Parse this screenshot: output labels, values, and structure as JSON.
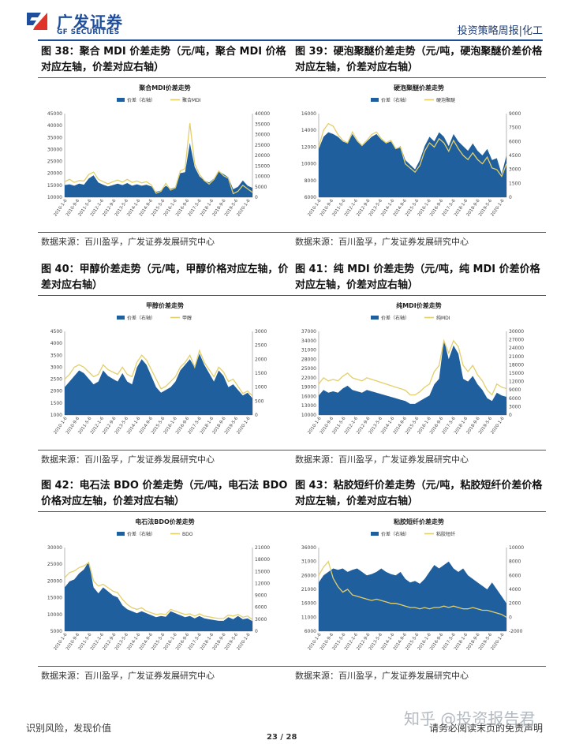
{
  "header": {
    "logo_cn": "广发证券",
    "logo_en": "GF SECURITIES",
    "report_type": "投资策略周报|化工"
  },
  "footer": {
    "left": "识别风险，发现价值",
    "page": "23 / 28",
    "right": "请务必阅读末页的免责声明",
    "watermark": "知乎 @投资报告君"
  },
  "panels": [
    {
      "title": "图 38：聚合 MDI 价差走势（元/吨，聚合 MDI 价格对应左轴，价差对应右轴）",
      "source": "数据来源：百川盈孚，广发证券发展研究中心",
      "chart_data": {
        "type": "area",
        "title": "聚合MDI价差走势",
        "legend_position": "top",
        "series": [
          {
            "name": "价差（右轴）",
            "axis": "right",
            "kind": "area",
            "values": [
              5800,
              6200,
              5500,
              6500,
              6000,
              9000,
              10500,
              7000,
              6000,
              5200,
              5800,
              6500,
              5800,
              6800,
              5500,
              6200,
              5500,
              6000,
              5200,
              2600,
              3200,
              5500,
              4000,
              4800,
              11500,
              12000,
              26000,
              14500,
              10000,
              8000,
              7000,
              9000,
              12500,
              11000,
              9500,
              3800,
              5000,
              8000,
              5500,
              4500
            ]
          },
          {
            "name": "聚合MDI",
            "axis": "left",
            "kind": "line",
            "values": [
              16500,
              17500,
              16200,
              17000,
              16800,
              19500,
              20500,
              17500,
              16500,
              15600,
              16500,
              17200,
              16300,
              17500,
              16200,
              16800,
              16000,
              16500,
              15200,
              11700,
              12500,
              15800,
              13000,
              14000,
              21000,
              22000,
              41000,
              24000,
              19500,
              17000,
              15500,
              17500,
              21000,
              19000,
              18000,
              11500,
              12500,
              15000,
              13500,
              12000
            ]
          }
        ],
        "x_tick_labels": [
          "2010-1-6",
          "2010-9-6",
          "2011-5-6",
          "2012-1-6",
          "2012-9-6",
          "2013-5-6",
          "2014-1-6",
          "2014-9-6",
          "2015-5-6",
          "2016-1-6",
          "2016-9-6",
          "2017-5-6",
          "2018-1-6",
          "2018-9-6",
          "2019-5-6",
          "2020-1-6"
        ],
        "ylim_left": [
          10000,
          45000
        ],
        "yticks_left": [
          10000,
          15000,
          20000,
          25000,
          30000,
          35000,
          40000,
          45000
        ],
        "ylim_right": [
          0,
          40000
        ],
        "yticks_right": [
          0,
          5000,
          10000,
          15000,
          20000,
          25000,
          30000,
          35000,
          40000
        ]
      }
    },
    {
      "title": "图 39：硬泡聚醚价差走势（元/吨，硬泡聚醚价差价格对应左轴，价差对应右轴）",
      "source": "数据来源：百川盈孚，广发证券发展研究中心",
      "chart_data": {
        "type": "area",
        "title": "硬泡聚醚价差走势",
        "legend_position": "top",
        "series": [
          {
            "name": "价差（右轴）",
            "axis": "right",
            "kind": "area",
            "values": [
              5200,
              6500,
              7000,
              6800,
              6500,
              6000,
              5800,
              6800,
              6000,
              5500,
              6000,
              6500,
              6800,
              6200,
              5800,
              6000,
              5200,
              5500,
              4000,
              3500,
              3000,
              4000,
              5500,
              6500,
              6000,
              7000,
              6500,
              5500,
              6800,
              6000,
              5500,
              5000,
              5800,
              5000,
              4500,
              5200,
              4000,
              4200,
              2500,
              4500
            ]
          },
          {
            "name": "硬泡聚醚",
            "axis": "left",
            "kind": "line",
            "values": [
              12000,
              14000,
              14800,
              14500,
              13500,
              12800,
              12500,
              13800,
              12800,
              12200,
              12800,
              13500,
              13800,
              13000,
              12500,
              12800,
              11800,
              12000,
              10000,
              9500,
              9000,
              9800,
              11500,
              12500,
              12000,
              13000,
              12500,
              11500,
              12800,
              11800,
              11000,
              10500,
              11300,
              10500,
              10000,
              10800,
              9500,
              9300,
              8500,
              10000
            ]
          }
        ],
        "x_tick_labels": [
          "2010-1-6",
          "2010-9-6",
          "2011-5-6",
          "2012-1-6",
          "2012-9-6",
          "2013-5-6",
          "2014-1-6",
          "2014-9-6",
          "2015-5-6",
          "2016-1-6",
          "2016-9-6",
          "2017-5-6",
          "2018-1-6",
          "2018-9-6",
          "2019-5-6",
          "2020-1-6"
        ],
        "ylim_left": [
          6000,
          16000
        ],
        "yticks_left": [
          6000,
          8000,
          10000,
          12000,
          14000,
          16000
        ],
        "ylim_right": [
          0,
          9000
        ],
        "yticks_right": [
          0,
          1500,
          3000,
          4500,
          6000,
          7500,
          9000
        ]
      }
    },
    {
      "title": "图 40：甲醇价差走势（元/吨，甲醇价格对应左轴，价差对应右轴）",
      "source": "数据来源：百川盈孚，广发证券发展研究中心",
      "chart_data": {
        "type": "area",
        "title": "甲醇价差走势",
        "legend_position": "top",
        "series": [
          {
            "name": "价差（右轴）",
            "axis": "right",
            "kind": "area",
            "values": [
              1000,
              1200,
              1400,
              1600,
              1500,
              1300,
              1100,
              1200,
              1600,
              1400,
              1300,
              1200,
              1500,
              1200,
              1100,
              1700,
              2000,
              1800,
              1400,
              1000,
              800,
              900,
              1000,
              1200,
              1600,
              1800,
              2000,
              1700,
              2200,
              1800,
              1500,
              1200,
              1600,
              1400,
              1000,
              1100,
              900,
              700,
              800,
              600
            ]
          },
          {
            "name": "甲醇",
            "axis": "left",
            "kind": "line",
            "values": [
              2500,
              2700,
              3000,
              3100,
              3000,
              2800,
              2600,
              2700,
              3100,
              2900,
              2800,
              2700,
              3000,
              2700,
              2600,
              3200,
              3500,
              3300,
              2900,
              2500,
              2100,
              2200,
              2400,
              2600,
              3000,
              3200,
              3500,
              3000,
              3700,
              3200,
              2900,
              2600,
              3000,
              2800,
              2400,
              2500,
              2200,
              1900,
              2000,
              1800
            ]
          }
        ],
        "x_tick_labels": [
          "2010-1-6",
          "2010-9-6",
          "2011-5-6",
          "2012-1-6",
          "2012-9-6",
          "2013-5-6",
          "2014-1-6",
          "2014-9-6",
          "2015-5-6",
          "2016-1-6",
          "2016-9-6",
          "2017-5-6",
          "2018-1-6",
          "2018-9-6",
          "2019-5-6",
          "2020-1-6"
        ],
        "ylim_left": [
          1000,
          4500
        ],
        "yticks_left": [
          1000,
          1500,
          2000,
          2500,
          3000,
          3500,
          4000,
          4500
        ],
        "ylim_right": [
          0,
          3000
        ],
        "yticks_right": [
          0,
          500,
          1000,
          1500,
          2000,
          2500,
          3000
        ]
      }
    },
    {
      "title": "图 41：纯 MDI 价差走势（元/吨，纯 MDI 价差价格对应左轴，价差对应右轴）",
      "source": "数据来源：百川盈孚，广发证券发展研究中心",
      "chart_data": {
        "type": "area",
        "title": "纯MDI价差走势",
        "legend_position": "top",
        "series": [
          {
            "name": "价差（右轴）",
            "axis": "right",
            "kind": "area",
            "values": [
              7000,
              9000,
              8000,
              8500,
              8000,
              9500,
              10500,
              9000,
              8500,
              8000,
              9000,
              8500,
              8000,
              7500,
              7000,
              6500,
              6000,
              5500,
              5000,
              4000,
              4000,
              5000,
              6000,
              7000,
              11000,
              13000,
              27000,
              20000,
              25000,
              22000,
              13000,
              12000,
              14000,
              11000,
              9000,
              6000,
              5000,
              8000,
              7000,
              6500
            ]
          },
          {
            "name": "纯MDI",
            "axis": "left",
            "kind": "line",
            "values": [
              20000,
              22000,
              21000,
              21500,
              21000,
              22500,
              23500,
              22000,
              21500,
              21000,
              22000,
              21500,
              21000,
              20500,
              20000,
              19500,
              19000,
              18500,
              18000,
              16500,
              16500,
              17500,
              19000,
              20000,
              24000,
              26000,
              34000,
              30000,
              34000,
              32000,
              26000,
              24000,
              26000,
              23000,
              21000,
              18000,
              16500,
              20000,
              19000,
              18500
            ]
          }
        ],
        "x_tick_labels": [
          "2010-1-6",
          "2010-9-6",
          "2011-5-6",
          "2012-1-6",
          "2012-9-6",
          "2013-5-6",
          "2014-1-6",
          "2014-9-6",
          "2015-5-6",
          "2016-1-6",
          "2016-9-6",
          "2017-5-6",
          "2018-1-6",
          "2018-9-6",
          "2019-5-6",
          "2020-1-6"
        ],
        "ylim_left": [
          10000,
          37000
        ],
        "yticks_left": [
          10000,
          13000,
          16000,
          19000,
          22000,
          25000,
          28000,
          31000,
          34000,
          37000
        ],
        "ylim_right": [
          0,
          30000
        ],
        "yticks_right": [
          0,
          3000,
          6000,
          9000,
          12000,
          15000,
          18000,
          21000,
          24000,
          27000,
          30000
        ]
      }
    },
    {
      "title": "图 42：电石法 BDO 价差走势（元/吨，电石法 BDO 价格对应左轴，价差对应右轴）",
      "source": "数据来源：百川盈孚，广发证券发展研究中心",
      "chart_data": {
        "type": "area",
        "title": "电石法BDO价差走势",
        "legend_position": "top",
        "series": [
          {
            "name": "价差（右轴）",
            "axis": "right",
            "kind": "area",
            "values": [
              11000,
              12500,
              13000,
              14500,
              15500,
              17500,
              11000,
              9500,
              11000,
              10000,
              9000,
              8500,
              6500,
              5500,
              5000,
              4500,
              5000,
              4500,
              4000,
              3500,
              3800,
              3600,
              5000,
              4500,
              4000,
              3500,
              3800,
              3200,
              3800,
              3200,
              3000,
              2800,
              2600,
              2600,
              3500,
              3000,
              3800,
              3000,
              3200,
              2500
            ]
          },
          {
            "name": "BDO",
            "axis": "left",
            "kind": "line",
            "values": [
              21000,
              22500,
              23000,
              24000,
              24500,
              25500,
              20000,
              18500,
              19000,
              18000,
              17000,
              16500,
              14500,
              13000,
              12000,
              11500,
              12000,
              11000,
              10500,
              10000,
              10200,
              10000,
              11500,
              11000,
              10500,
              10000,
              10200,
              9500,
              10200,
              9500,
              9300,
              9000,
              8800,
              8800,
              9800,
              9500,
              10000,
              9200,
              9500,
              8500
            ]
          }
        ],
        "x_tick_labels": [
          "2010-1-6",
          "2010-9-6",
          "2011-5-6",
          "2012-1-6",
          "2012-9-6",
          "2013-5-6",
          "2014-1-6",
          "2014-9-6",
          "2015-5-6",
          "2016-1-6",
          "2016-9-6",
          "2017-5-6",
          "2018-1-6",
          "2018-9-6",
          "2019-5-6",
          "2020-1-6"
        ],
        "ylim_left": [
          5000,
          30000
        ],
        "yticks_left": [
          5000,
          10000,
          15000,
          20000,
          25000,
          30000
        ],
        "ylim_right": [
          0,
          21000
        ],
        "yticks_right": [
          0,
          3000,
          6000,
          9000,
          12000,
          15000,
          18000,
          21000
        ]
      }
    },
    {
      "title": "图 43：粘胶短纤价差走势（元/吨，粘胶短纤价差价格对应左轴，价差对应右轴）",
      "source": "数据来源：百川盈孚，广发证券发展研究中心",
      "chart_data": {
        "type": "area",
        "title": "粘胶短纤价差走势",
        "legend_position": "top",
        "series": [
          {
            "name": "价差（右轴）",
            "axis": "right",
            "kind": "area",
            "values": [
              5000,
              6000,
              6500,
              7000,
              6800,
              7000,
              6500,
              6800,
              7000,
              6500,
              6000,
              6200,
              6500,
              7000,
              6500,
              6200,
              6000,
              6500,
              5500,
              5000,
              5200,
              4800,
              5500,
              6500,
              7500,
              7000,
              7500,
              8000,
              7000,
              6500,
              7000,
              6000,
              5500,
              5000,
              4500,
              4000,
              5000,
              4000,
              3000,
              2000
            ]
          },
          {
            "name": "粘胶短纤",
            "axis": "left",
            "kind": "line",
            "values": [
              26000,
              29000,
              31000,
              25000,
              22000,
              20000,
              21000,
              19000,
              18500,
              18000,
              17500,
              17000,
              17500,
              17000,
              16500,
              16000,
              16000,
              15500,
              15000,
              14500,
              14500,
              14000,
              14500,
              14000,
              14500,
              14500,
              15000,
              14500,
              15000,
              14500,
              14000,
              14000,
              14500,
              14000,
              13500,
              13500,
              13000,
              12500,
              12000,
              11000
            ]
          }
        ],
        "x_tick_labels": [
          "2010-1-6",
          "2010-9-6",
          "2011-5-6",
          "2012-1-6",
          "2012-9-6",
          "2013-5-6",
          "2014-1-6",
          "2014-9-6",
          "2015-5-6",
          "2016-1-6",
          "2016-9-6",
          "2017-5-6",
          "2018-1-6",
          "2018-9-6",
          "2019-5-6",
          "2020-1-6"
        ],
        "ylim_left": [
          6000,
          36000
        ],
        "yticks_left": [
          6000,
          11000,
          16000,
          21000,
          26000,
          31000,
          36000
        ],
        "ylim_right": [
          -2000,
          10000
        ],
        "yticks_right": [
          -2000,
          0,
          2000,
          4000,
          6000,
          8000,
          10000
        ]
      }
    }
  ]
}
